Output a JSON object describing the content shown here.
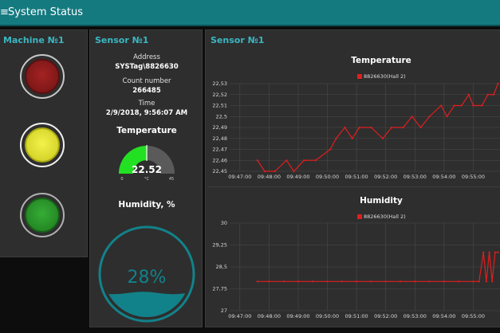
{
  "app": {
    "title": "System Status",
    "menu_icon": "hamburger-icon"
  },
  "machine": {
    "title": "Machine №1",
    "lamps": [
      {
        "name": "red",
        "color": "#8a1a1a",
        "rim": "#c8c8c8"
      },
      {
        "name": "yellow",
        "color": "#e6e62a",
        "rim": "#f0f0f0"
      },
      {
        "name": "green",
        "color": "#2c9a2c",
        "rim": "#b0b0b0"
      }
    ]
  },
  "sensor_info": {
    "title": "Sensor №1",
    "address_label": "Address",
    "address_value": "SYSTag\\8826630",
    "count_label": "Count number",
    "count_value": "266485",
    "time_label": "Time",
    "time_value": "2/9/2018, 9:56:07 AM",
    "temperature_heading": "Temperature",
    "gauge": {
      "value": "22.52",
      "unit": "°C",
      "min": "0",
      "max": "45",
      "level": 0.5004,
      "color": "#22e022"
    },
    "humidity_heading": "Humidity, %",
    "humidity": {
      "value": "28%",
      "level": 0.28,
      "color": "#12828a"
    }
  },
  "charts_panel": {
    "title": "Sensor №1"
  },
  "chart_data": [
    {
      "type": "line",
      "title": "Temperature",
      "series": [
        {
          "name": "8826630(Hall 2)",
          "color": "#e01e1e"
        }
      ],
      "yticks": [
        "22,45",
        "22,46",
        "22,47",
        "22,48",
        "22,49",
        "22,5",
        "22,51",
        "22,52",
        "22,53"
      ],
      "xticks": [
        "09:47:00",
        "09:48:00",
        "09:49:00",
        "09:50:00",
        "09:51:00",
        "09:52:00",
        "09:53:00",
        "09:54:00",
        "09:55:00"
      ],
      "ylim": [
        22.45,
        22.53
      ],
      "x_minutes": [
        47.6,
        47.85,
        48.2,
        48.6,
        48.85,
        49.2,
        49.6,
        50.1,
        50.3,
        50.6,
        50.85,
        51.1,
        51.5,
        51.9,
        52.2,
        52.6,
        52.9,
        53.2,
        53.5,
        53.9,
        54.1,
        54.35,
        54.6,
        54.85,
        55.0,
        55.3,
        55.5,
        55.7,
        55.85
      ],
      "values": [
        22.46,
        22.45,
        22.45,
        22.46,
        22.45,
        22.46,
        22.46,
        22.47,
        22.48,
        22.49,
        22.48,
        22.49,
        22.49,
        22.48,
        22.49,
        22.49,
        22.5,
        22.49,
        22.5,
        22.51,
        22.5,
        22.51,
        22.51,
        22.52,
        22.51,
        22.51,
        22.52,
        22.52,
        22.53
      ],
      "grid": true
    },
    {
      "type": "line",
      "title": "Humidity",
      "series": [
        {
          "name": "8826630(Hall 2)",
          "color": "#e01e1e"
        }
      ],
      "yticks": [
        "27",
        "27,75",
        "28,5",
        "29,25",
        "30"
      ],
      "xticks": [
        "09:47:00",
        "09:48:00",
        "09:49:00",
        "09:50:00",
        "09:51:00",
        "09:52:00",
        "09:53:00",
        "09:54:00",
        "09:55:00"
      ],
      "ylim": [
        27,
        30
      ],
      "x_minutes": [
        47.6,
        48.0,
        48.5,
        49.0,
        49.5,
        50.0,
        50.5,
        51.0,
        51.5,
        52.0,
        52.5,
        53.0,
        53.5,
        54.0,
        54.5,
        55.0,
        55.2,
        55.35,
        55.45,
        55.55,
        55.65,
        55.75,
        55.85
      ],
      "values": [
        28.0,
        28.0,
        28.0,
        28.0,
        28.0,
        28.0,
        28.0,
        28.0,
        28.0,
        28.0,
        28.0,
        28.0,
        28.0,
        28.0,
        28.0,
        28.0,
        28.0,
        29.0,
        28.0,
        29.0,
        28.0,
        29.0,
        29.0
      ],
      "grid": true
    }
  ]
}
